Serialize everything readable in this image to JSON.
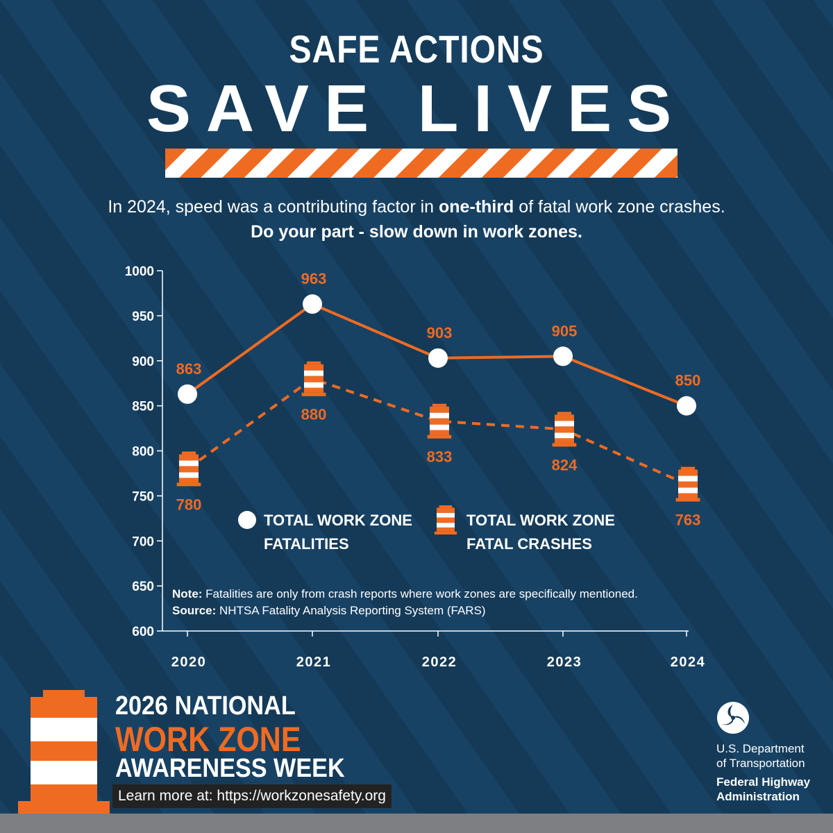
{
  "header": {
    "line1": "SAFE ACTIONS",
    "line2": "SAVE LIVES"
  },
  "intro": {
    "pre": "In 2024, speed was a contributing factor in ",
    "bold": "one-third",
    "post": " of fatal work zone crashes.",
    "line2": "Do your part - slow down in work zones."
  },
  "chart_data": {
    "type": "line",
    "x": [
      "2020",
      "2021",
      "2022",
      "2023",
      "2024"
    ],
    "ylim": [
      600,
      1000
    ],
    "yticks": [
      1000,
      950,
      900,
      850,
      800,
      750,
      700,
      650,
      600
    ],
    "series": [
      {
        "name": "TOTAL WORK ZONE FATALITIES",
        "style": "solid",
        "marker": "circle",
        "values": [
          863,
          963,
          903,
          905,
          850
        ]
      },
      {
        "name": "TOTAL WORK ZONE FATAL CRASHES",
        "style": "dashed",
        "marker": "barrel",
        "values": [
          780,
          880,
          833,
          824,
          763
        ]
      }
    ],
    "legend": {
      "fatalities_line1": "TOTAL WORK ZONE",
      "fatalities_line2": "FATALITIES",
      "crashes_line1": "TOTAL WORK ZONE",
      "crashes_line2": "FATAL CRASHES"
    },
    "note_label": "Note:",
    "note_text": " Fatalities are only from crash reports where work zones are specifically mentioned.",
    "source_label": "Source:",
    "source_text": " NHTSA Fatality Analysis Reporting System (FARS)"
  },
  "footer": {
    "line1": "2026 NATIONAL",
    "line2": "WORK ZONE",
    "line3": "AWARENESS WEEK",
    "learn_more": "Learn more at: https://workzonesafety.org",
    "agency_line1": "U.S. Department",
    "agency_line2": "of Transportation",
    "agency_line3": "Federal Highway",
    "agency_line4": "Administration"
  },
  "colors": {
    "background": "#143a58",
    "accent": "#f06b22",
    "white": "#ffffff"
  }
}
